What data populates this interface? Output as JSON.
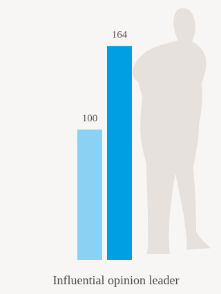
{
  "chart_data": {
    "type": "bar",
    "categories": [
      null,
      null
    ],
    "values": [
      100,
      164
    ],
    "colors": [
      "#8ad1f3",
      "#009fe3"
    ],
    "ylim": [
      0,
      170
    ],
    "xlabel": "Influential opinion leader"
  }
}
